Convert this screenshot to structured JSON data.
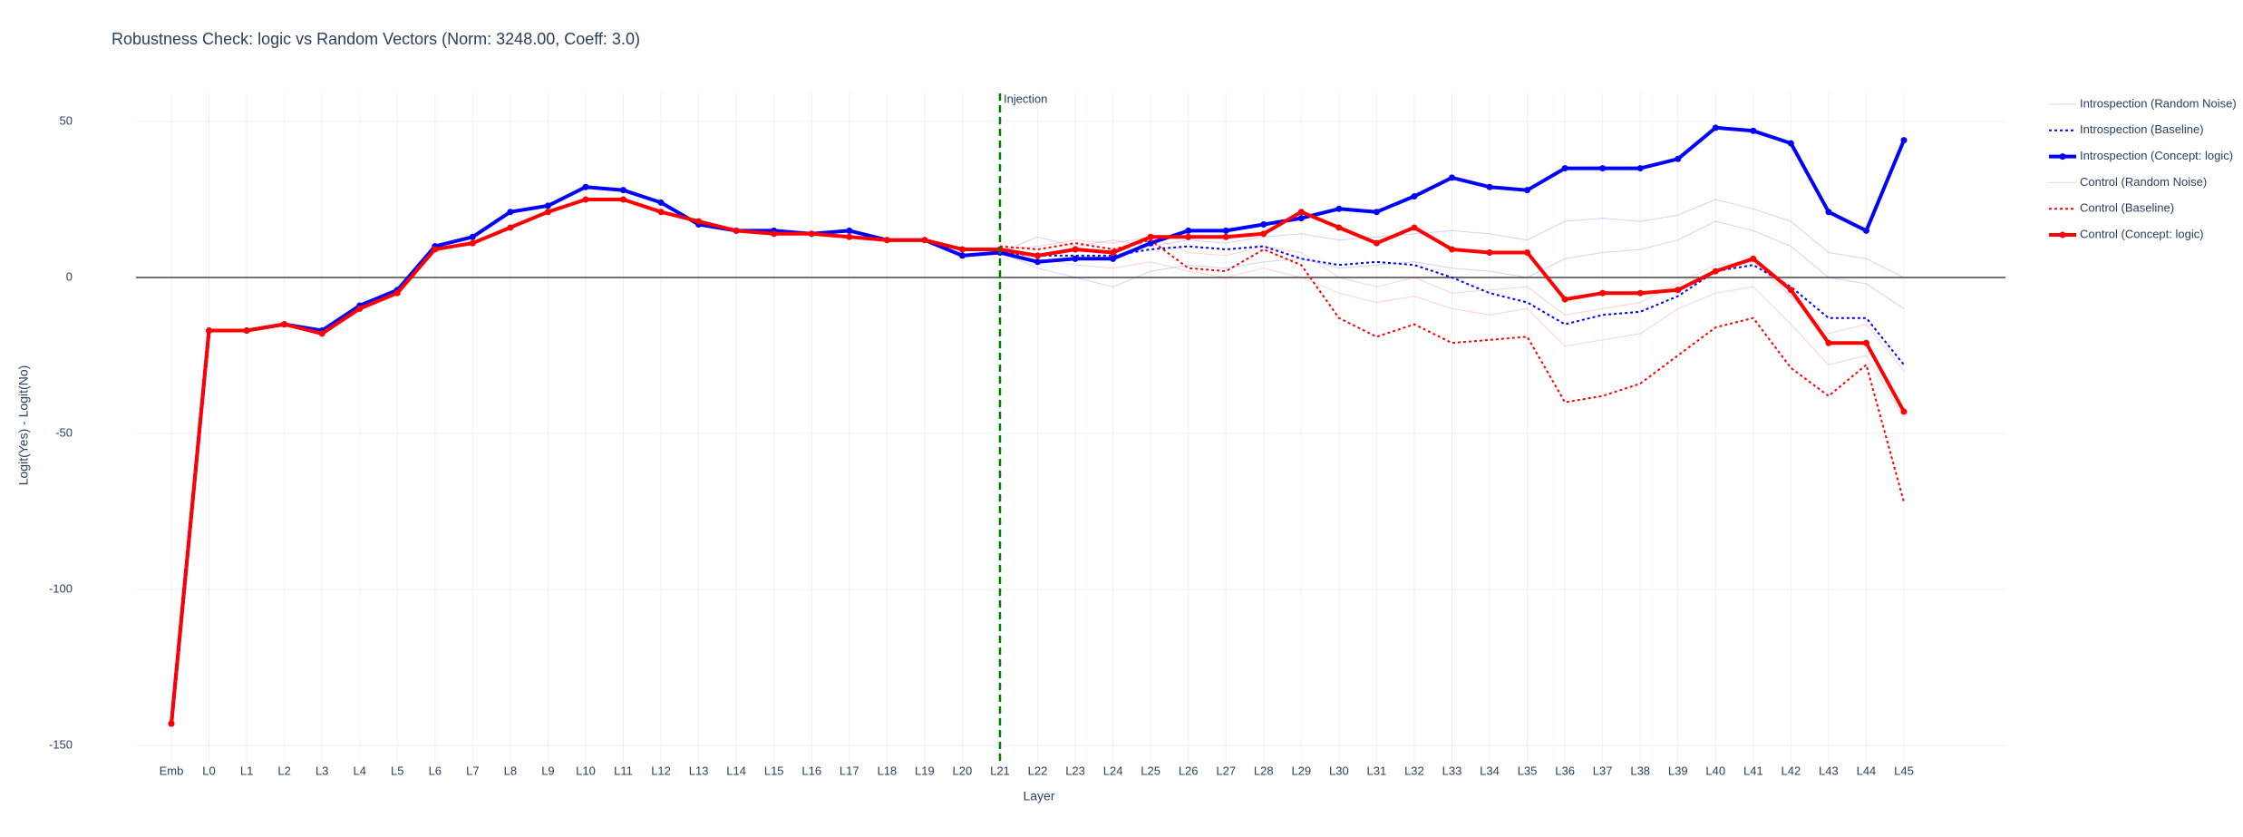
{
  "chart_data": {
    "type": "line",
    "title": "Robustness Check: logic vs Random Vectors (Norm: 3248.00, Coeff: 3.0)",
    "x_label": "Layer",
    "y_label": "Logit(Yes) - Logit(No)",
    "categories": [
      "Emb",
      "L0",
      "L1",
      "L2",
      "L3",
      "L4",
      "L5",
      "L6",
      "L7",
      "L8",
      "L9",
      "L10",
      "L11",
      "L12",
      "L13",
      "L14",
      "L15",
      "L16",
      "L17",
      "L18",
      "L19",
      "L20",
      "L21",
      "L22",
      "L23",
      "L24",
      "L25",
      "L26",
      "L27",
      "L28",
      "L29",
      "L30",
      "L31",
      "L32",
      "L33",
      "L34",
      "L35",
      "L36",
      "L37",
      "L38",
      "L39",
      "L40",
      "L41",
      "L42",
      "L43",
      "L44",
      "L45"
    ],
    "ylim": [
      -155.5,
      59
    ],
    "yticks": [
      -150,
      -100,
      -50,
      0,
      50
    ],
    "grid": true,
    "zeroline": true,
    "legend": "right",
    "vline": {
      "x": "L21",
      "label": "Injection",
      "color": "#008000"
    },
    "series": [
      {
        "name": "Introspection (Random Noise)",
        "color": "#0000ff",
        "width": 1,
        "opacity": 0.18,
        "dash": "solid",
        "markers": false,
        "values": [
          null,
          null,
          null,
          null,
          null,
          null,
          null,
          null,
          null,
          null,
          null,
          null,
          null,
          null,
          null,
          null,
          null,
          null,
          null,
          null,
          null,
          null,
          8,
          13,
          10,
          12,
          10,
          12,
          11,
          13,
          14,
          12,
          13,
          14,
          15,
          14,
          12,
          18,
          19,
          18,
          20,
          25,
          22,
          18,
          8,
          6,
          0
        ]
      },
      {
        "name": "Introspection (Random Noise)",
        "color": "#0000ff",
        "width": 1,
        "opacity": 0.18,
        "dash": "solid",
        "markers": false,
        "values": [
          null,
          null,
          null,
          null,
          null,
          null,
          null,
          null,
          null,
          null,
          null,
          null,
          null,
          null,
          null,
          null,
          null,
          null,
          null,
          null,
          null,
          null,
          8,
          3,
          0,
          -3,
          2,
          4,
          3,
          5,
          6,
          3,
          4,
          5,
          3,
          2,
          0,
          6,
          8,
          9,
          12,
          18,
          15,
          10,
          0,
          -2,
          -10
        ]
      },
      {
        "name": "Introspection (Baseline)",
        "color": "#0000ff",
        "width": 2,
        "opacity": 1,
        "dash": "dot",
        "markers": false,
        "values": [
          null,
          null,
          null,
          null,
          null,
          null,
          null,
          null,
          null,
          null,
          null,
          null,
          null,
          null,
          null,
          null,
          null,
          null,
          null,
          null,
          null,
          null,
          8,
          7,
          7,
          7,
          9,
          10,
          9,
          10,
          6,
          4,
          5,
          4,
          0,
          -5,
          -8,
          -15,
          -12,
          -11,
          -6,
          2,
          4,
          -3,
          -13,
          -13,
          -28
        ]
      },
      {
        "name": "Introspection (Concept: logic)",
        "color": "#0000ff",
        "width": 4,
        "opacity": 1,
        "dash": "solid",
        "markers": true,
        "values": [
          -143,
          -17,
          -17,
          -15,
          -17,
          -9,
          -4,
          10,
          13,
          21,
          23,
          29,
          28,
          24,
          17,
          15,
          15,
          14,
          15,
          12,
          12,
          7,
          8,
          5,
          6,
          6,
          11,
          15,
          15,
          17,
          19,
          22,
          21,
          26,
          32,
          29,
          28,
          35,
          35,
          35,
          38,
          48,
          47,
          43,
          21,
          15,
          44
        ]
      },
      {
        "name": "Control (Random Noise)",
        "color": "#ff0000",
        "width": 1,
        "opacity": 0.18,
        "dash": "solid",
        "markers": false,
        "values": [
          null,
          null,
          null,
          null,
          null,
          null,
          null,
          null,
          null,
          null,
          null,
          null,
          null,
          null,
          null,
          null,
          null,
          null,
          null,
          null,
          null,
          null,
          9,
          6,
          4,
          3,
          5,
          2,
          0,
          3,
          0,
          -5,
          -8,
          -6,
          -10,
          -12,
          -10,
          -22,
          -20,
          -18,
          -10,
          -5,
          -3,
          -15,
          -28,
          -25,
          -45
        ]
      },
      {
        "name": "Control (Random Noise)",
        "color": "#ff0000",
        "width": 1,
        "opacity": 0.18,
        "dash": "solid",
        "markers": false,
        "values": [
          null,
          null,
          null,
          null,
          null,
          null,
          null,
          null,
          null,
          null,
          null,
          null,
          null,
          null,
          null,
          null,
          null,
          null,
          null,
          null,
          null,
          null,
          9,
          10,
          12,
          11,
          13,
          8,
          7,
          10,
          8,
          0,
          -3,
          0,
          -5,
          -4,
          -3,
          -12,
          -10,
          -8,
          -2,
          4,
          5,
          -6,
          -18,
          -15,
          -30
        ]
      },
      {
        "name": "Control (Baseline)",
        "color": "#ff0000",
        "width": 2,
        "opacity": 1,
        "dash": "dot",
        "markers": false,
        "values": [
          null,
          null,
          null,
          null,
          null,
          null,
          null,
          null,
          null,
          null,
          null,
          null,
          null,
          null,
          null,
          null,
          null,
          null,
          null,
          null,
          null,
          null,
          10,
          9,
          11,
          9,
          12,
          3,
          2,
          9,
          4,
          -13,
          -19,
          -15,
          -21,
          -20,
          -19,
          -40,
          -38,
          -34,
          -25,
          -16,
          -13,
          -29,
          -38,
          -28,
          -72
        ]
      },
      {
        "name": "Control (Concept: logic)",
        "color": "#ff0000",
        "width": 4,
        "opacity": 1,
        "dash": "solid",
        "markers": true,
        "values": [
          -143,
          -17,
          -17,
          -15,
          -18,
          -10,
          -5,
          9,
          11,
          16,
          21,
          25,
          25,
          21,
          18,
          15,
          14,
          14,
          13,
          12,
          12,
          9,
          9,
          7,
          9,
          8,
          13,
          13,
          13,
          14,
          21,
          16,
          11,
          16,
          9,
          8,
          8,
          -7,
          -5,
          -5,
          -4,
          2,
          6,
          -4,
          -21,
          -21,
          -43
        ]
      }
    ]
  }
}
